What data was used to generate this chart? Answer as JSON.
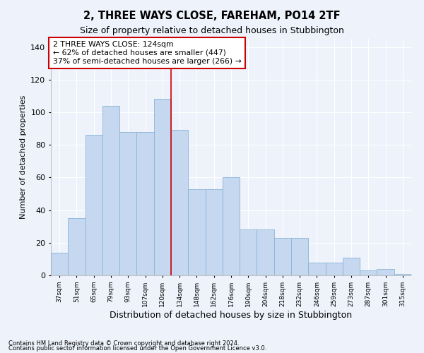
{
  "title": "2, THREE WAYS CLOSE, FAREHAM, PO14 2TF",
  "subtitle": "Size of property relative to detached houses in Stubbington",
  "xlabel": "Distribution of detached houses by size in Stubbington",
  "ylabel": "Number of detached properties",
  "categories": [
    "37sqm",
    "51sqm",
    "65sqm",
    "79sqm",
    "93sqm",
    "107sqm",
    "120sqm",
    "134sqm",
    "148sqm",
    "162sqm",
    "176sqm",
    "190sqm",
    "204sqm",
    "218sqm",
    "232sqm",
    "246sqm",
    "259sqm",
    "273sqm",
    "287sqm",
    "301sqm",
    "315sqm"
  ],
  "values": [
    14,
    35,
    86,
    104,
    88,
    88,
    108,
    89,
    53,
    53,
    60,
    28,
    28,
    23,
    23,
    8,
    8,
    11,
    3,
    4,
    1
  ],
  "bar_color": "#c5d8f0",
  "bar_edge_color": "#8ab4d8",
  "vline_x": 6.48,
  "vline_color": "#cc0000",
  "ylim": [
    0,
    145
  ],
  "yticks": [
    0,
    20,
    40,
    60,
    80,
    100,
    120,
    140
  ],
  "annotation_text": "2 THREE WAYS CLOSE: 124sqm\n← 62% of detached houses are smaller (447)\n37% of semi-detached houses are larger (266) →",
  "annotation_box_color": "#cc0000",
  "footer1": "Contains HM Land Registry data © Crown copyright and database right 2024.",
  "footer2": "Contains public sector information licensed under the Open Government Licence v3.0.",
  "background_color": "#eef2fb",
  "grid_color": "#ffffff",
  "title_fontsize": 10.5,
  "subtitle_fontsize": 9,
  "ylabel_fontsize": 8,
  "xlabel_fontsize": 9
}
